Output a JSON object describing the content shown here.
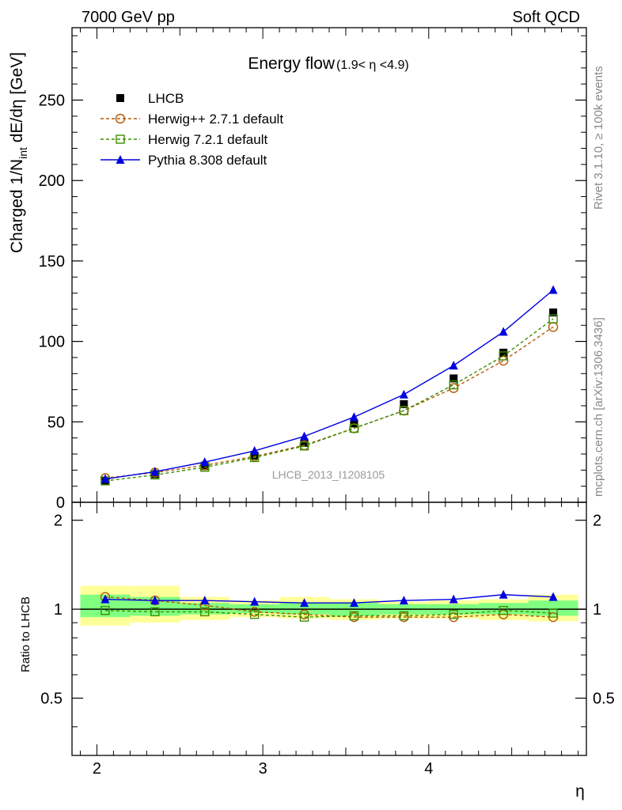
{
  "header": {
    "left": "7000 GeV pp",
    "right": "Soft QCD"
  },
  "side_labels": {
    "rivet": "Rivet 3.1.10, ≥ 100k events",
    "mcplots": "mcplots.cern.ch [arXiv:1306.3436]"
  },
  "colors": {
    "lhcb": "#000000",
    "herwigpp": "#b35900",
    "herwig7": "#3a8f00",
    "pythia": "#0000e0",
    "band_inner": "#80ff80",
    "band_outer": "#ffff99"
  },
  "chart_data": [
    {
      "type": "line",
      "title": "Energy flow",
      "title_sub": "(1.9< η <4.9)",
      "ylabel_main": "Charged 1/N",
      "ylabel_sub": "int",
      "ylabel_tail": " dE/dη [GeV]",
      "xlabel": "η",
      "xlim": [
        1.85,
        4.95
      ],
      "ylim": [
        0,
        295
      ],
      "x_ticks": [
        2,
        3,
        4
      ],
      "y_ticks": [
        0,
        50,
        100,
        150,
        200,
        250
      ],
      "watermark": "LHCB_2013_I1208105",
      "legend_position": "top-left",
      "x": [
        2.05,
        2.35,
        2.65,
        2.95,
        3.25,
        3.55,
        3.85,
        4.15,
        4.45,
        4.75
      ],
      "series": [
        {
          "name": "LHCB",
          "style": "data",
          "marker": "filled-square",
          "values": [
            13.5,
            17.5,
            22.5,
            29,
            37,
            49,
            61,
            77,
            93,
            118
          ]
        },
        {
          "name": "Herwig++ 2.7.1 default",
          "style": "dashed",
          "marker": "open-circle",
          "values": [
            15,
            18.5,
            23,
            28.5,
            35.5,
            46,
            57,
            71,
            88,
            109
          ]
        },
        {
          "name": "Herwig 7.2.1 default",
          "style": "dashed",
          "marker": "open-square",
          "values": [
            13.3,
            17,
            21.8,
            27.8,
            35,
            46,
            57,
            73,
            91,
            114
          ]
        },
        {
          "name": "Pythia 8.308 default",
          "style": "solid",
          "marker": "filled-triangle",
          "values": [
            14.5,
            19,
            25,
            32,
            41,
            53,
            67,
            85,
            106,
            132
          ]
        }
      ]
    },
    {
      "type": "line",
      "ylabel": "Ratio to LHCB",
      "ylim": [
        0.32,
        2.3
      ],
      "y_ticks": [
        0.5,
        1,
        2
      ],
      "reference_line": 1,
      "bin_edges": [
        1.9,
        2.2,
        2.5,
        2.8,
        3.1,
        3.4,
        3.7,
        4.0,
        4.3,
        4.6,
        4.9
      ],
      "band_outer": [
        [
          0.88,
          1.2
        ],
        [
          0.9,
          1.2
        ],
        [
          0.92,
          1.1
        ],
        [
          0.94,
          1.07
        ],
        [
          0.93,
          1.1
        ],
        [
          0.92,
          1.08
        ],
        [
          0.93,
          1.06
        ],
        [
          0.93,
          1.07
        ],
        [
          0.92,
          1.08
        ],
        [
          0.91,
          1.12
        ]
      ],
      "band_inner": [
        [
          0.94,
          1.12
        ],
        [
          0.95,
          1.1
        ],
        [
          0.96,
          1.05
        ],
        [
          0.97,
          1.04
        ],
        [
          0.96,
          1.05
        ],
        [
          0.95,
          1.05
        ],
        [
          0.96,
          1.04
        ],
        [
          0.96,
          1.04
        ],
        [
          0.96,
          1.05
        ],
        [
          0.95,
          1.07
        ]
      ],
      "series": [
        {
          "name": "Herwig++ 2.7.1 default",
          "marker": "open-circle",
          "values": [
            1.1,
            1.07,
            1.03,
            0.98,
            0.96,
            0.94,
            0.94,
            0.94,
            0.96,
            0.94
          ]
        },
        {
          "name": "Herwig 7.2.1 default",
          "marker": "open-square",
          "values": [
            0.99,
            0.98,
            0.98,
            0.96,
            0.94,
            0.95,
            0.95,
            0.96,
            0.99,
            0.97
          ]
        },
        {
          "name": "Pythia 8.308 default",
          "marker": "filled-triangle",
          "values": [
            1.08,
            1.07,
            1.07,
            1.06,
            1.05,
            1.05,
            1.07,
            1.08,
            1.12,
            1.1
          ]
        }
      ]
    }
  ]
}
